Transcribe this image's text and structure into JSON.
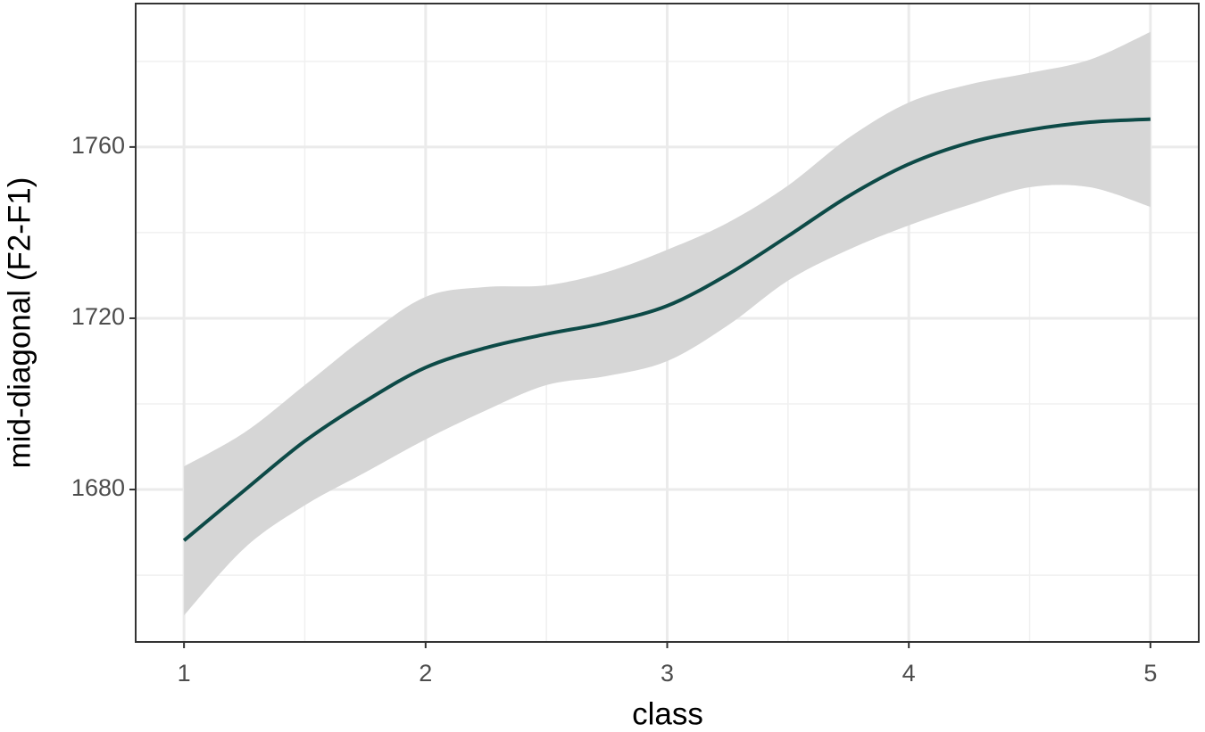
{
  "chart_data": {
    "type": "line",
    "x_label": "class",
    "y_label": "mid-diagonal (F2-F1)",
    "x": [
      1,
      1.25,
      1.5,
      1.75,
      2,
      2.25,
      2.5,
      2.75,
      3,
      3.25,
      3.5,
      3.75,
      4,
      4.25,
      4.5,
      4.75,
      5
    ],
    "values": [
      1668.1,
      1679.8,
      1691.3,
      1700.6,
      1708.5,
      1713.1,
      1716.3,
      1719,
      1722.9,
      1730.2,
      1739.2,
      1748.5,
      1756,
      1761,
      1764,
      1765.8,
      1766.5
    ],
    "upper": [
      1685.4,
      1693.3,
      1704.4,
      1715.6,
      1725,
      1727.3,
      1727.7,
      1730.8,
      1736,
      1742.3,
      1751,
      1762.1,
      1770.4,
      1774.6,
      1777.3,
      1780.4,
      1786.9
    ],
    "lower": [
      1650.6,
      1666.3,
      1676.3,
      1684,
      1691.7,
      1698.5,
      1704.4,
      1706.5,
      1710,
      1718.3,
      1728.8,
      1736,
      1741.7,
      1746.5,
      1750.6,
      1750.6,
      1746
    ],
    "color": "#0d4a47",
    "band_color": "#d6d6d6",
    "xlim": [
      0.8,
      5.2
    ],
    "xticks": [
      1,
      2,
      3,
      4,
      5
    ],
    "xminor": [
      1.5,
      2.5,
      3.5,
      4.5
    ],
    "ylim": [
      1644.4,
      1793.5
    ],
    "yticks": [
      1680,
      1720,
      1760
    ],
    "yminor": [
      1660,
      1700,
      1740,
      1780
    ],
    "grid": true
  }
}
